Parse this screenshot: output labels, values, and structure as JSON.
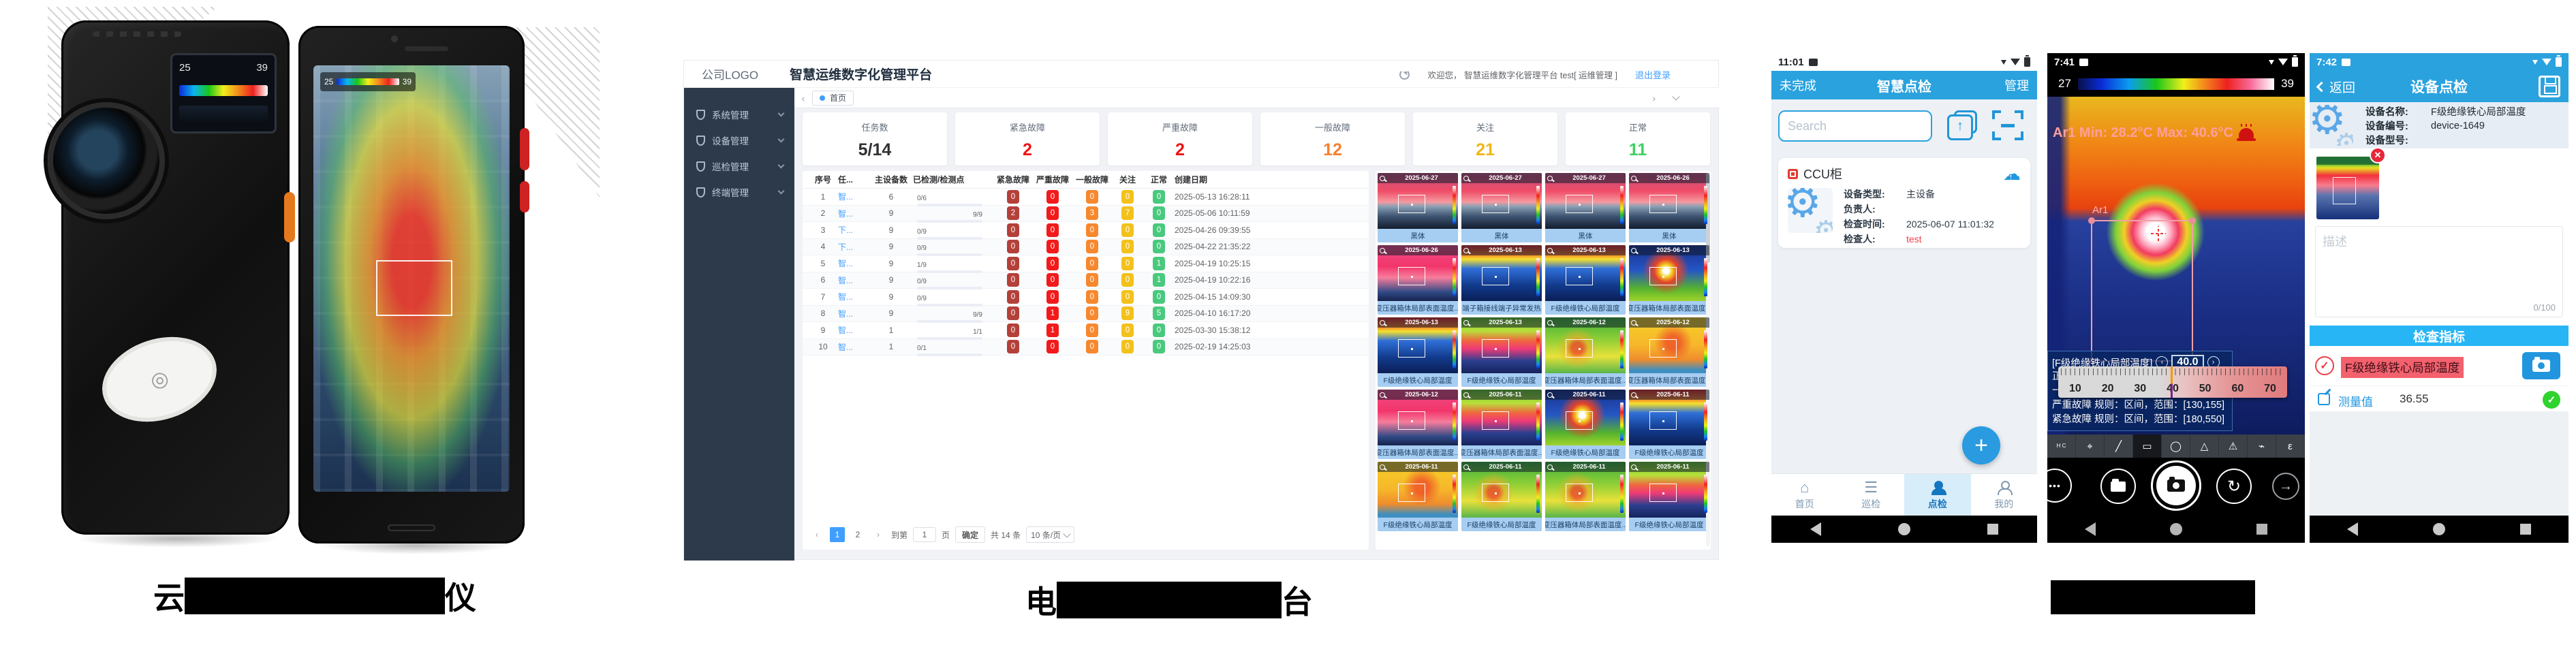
{
  "captions": {
    "left": {
      "prefix": "云",
      "suffix": "仪",
      "redacted": true
    },
    "middle": {
      "prefix": "电",
      "suffix": "台",
      "redacted": true
    },
    "right": {
      "prefix": "",
      "suffix": "",
      "redacted": true
    }
  },
  "devices": {
    "scale_min": "25",
    "scale_max": "39"
  },
  "dashboard": {
    "logo": "公司LOGO",
    "title": "智慧运维数字化管理平台",
    "welcome": "欢迎您， 智慧运维数字化管理平台 test[ 运维管理 ]",
    "logout": "退出登录",
    "sidebar": [
      {
        "label": "系统管理"
      },
      {
        "label": "设备管理"
      },
      {
        "label": "巡检管理"
      },
      {
        "label": "终端管理"
      }
    ],
    "tab": "首页",
    "stats": [
      {
        "label": "任务数",
        "value": "5/14",
        "color": "#303133"
      },
      {
        "label": "紧急故障",
        "value": "2",
        "color": "#f01414"
      },
      {
        "label": "严重故障",
        "value": "2",
        "color": "#f01414"
      },
      {
        "label": "一般故障",
        "value": "12",
        "color": "#f7802e"
      },
      {
        "label": "关注",
        "value": "21",
        "color": "#f2b616"
      },
      {
        "label": "正常",
        "value": "11",
        "color": "#3ecf62"
      }
    ],
    "table": {
      "headers": [
        "序号",
        "任...",
        "主设备数",
        "已检测/检测点",
        "紧急故障",
        "严重故障",
        "一般故障",
        "关注",
        "正常",
        "创建日期"
      ],
      "badge_colors": [
        "#b4403a",
        "#f21a1a",
        "#f7882e",
        "#f3c11b",
        "#49c97d"
      ],
      "rows": [
        {
          "seq": "1",
          "task": "智...",
          "devices": "6",
          "progress_label": "0/6",
          "progress_pct": 0,
          "badges": [
            "0",
            "0",
            "0",
            "0",
            "0"
          ],
          "date": "2025-05-13 16:28:11"
        },
        {
          "seq": "2",
          "task": "智...",
          "devices": "9",
          "progress_label": "9/9",
          "progress_pct": 100,
          "badges": [
            "2",
            "0",
            "3",
            "7",
            "0"
          ],
          "date": "2025-05-06 10:11:59"
        },
        {
          "seq": "3",
          "task": "下...",
          "devices": "9",
          "progress_label": "0/9",
          "progress_pct": 0,
          "badges": [
            "0",
            "0",
            "0",
            "0",
            "0"
          ],
          "date": "2025-04-26 09:39:55"
        },
        {
          "seq": "4",
          "task": "下...",
          "devices": "9",
          "progress_label": "0/9",
          "progress_pct": 0,
          "badges": [
            "0",
            "0",
            "0",
            "0",
            "0"
          ],
          "date": "2025-04-22 21:35:22"
        },
        {
          "seq": "5",
          "task": "智...",
          "devices": "9",
          "progress_label": "1/9",
          "progress_pct": 11,
          "progress_color": "#f56c6c",
          "badges": [
            "0",
            "0",
            "0",
            "0",
            "1"
          ],
          "date": "2025-04-19 10:25:15"
        },
        {
          "seq": "6",
          "task": "智...",
          "devices": "9",
          "progress_label": "0/9",
          "progress_pct": 0,
          "badges": [
            "0",
            "0",
            "0",
            "0",
            "1"
          ],
          "date": "2025-04-19 10:22:16"
        },
        {
          "seq": "7",
          "task": "智...",
          "devices": "9",
          "progress_label": "0/9",
          "progress_pct": 0,
          "badges": [
            "0",
            "0",
            "0",
            "0",
            "0"
          ],
          "date": "2025-04-15 14:09:30"
        },
        {
          "seq": "8",
          "task": "智...",
          "devices": "9",
          "progress_label": "9/9",
          "progress_pct": 100,
          "badges": [
            "0",
            "1",
            "0",
            "9",
            "5"
          ],
          "date": "2025-04-10 16:17:20"
        },
        {
          "seq": "9",
          "task": "智...",
          "devices": "1",
          "progress_label": "1/1",
          "progress_pct": 100,
          "badges": [
            "0",
            "1",
            "0",
            "0",
            "0"
          ],
          "date": "2025-03-30 15:38:12"
        },
        {
          "seq": "10",
          "task": "智...",
          "devices": "1",
          "progress_label": "0/1",
          "progress_pct": 0,
          "badges": [
            "0",
            "0",
            "0",
            "0",
            "0"
          ],
          "date": "2025-02-19 14:25:03"
        }
      ]
    },
    "pagination": {
      "prev": "‹",
      "pages": [
        "1",
        "2"
      ],
      "active_page": "1",
      "next": "›",
      "jump_label": "到第",
      "jump_value": "1",
      "jump_unit": "页",
      "confirm": "确定",
      "total": "共 14 条",
      "page_size": "10 条/页"
    },
    "gallery": [
      {
        "date": "2025-06-27",
        "caption": "黑体",
        "variant": "v1"
      },
      {
        "date": "2025-06-27",
        "caption": "黑体",
        "variant": "v1"
      },
      {
        "date": "2025-06-27",
        "caption": "黑体",
        "variant": "v1"
      },
      {
        "date": "2025-06-26",
        "caption": "黑体",
        "variant": "v1"
      },
      {
        "date": "2025-06-26",
        "caption": "变压器箱体局部表面温度...",
        "variant": "v7"
      },
      {
        "date": "2025-06-13",
        "caption": "端子箱接线端子异常发热",
        "variant": "v2"
      },
      {
        "date": "2025-06-13",
        "caption": "F级绝缘铁心局部温度",
        "variant": "v2"
      },
      {
        "date": "2025-06-13",
        "caption": "变压器箱体局部表面温度...",
        "variant": "v3"
      },
      {
        "date": "2025-06-13",
        "caption": "F级绝缘铁心局部温度",
        "variant": "v2"
      },
      {
        "date": "2025-06-13",
        "caption": "F级绝缘铁心局部温度",
        "variant": "v4"
      },
      {
        "date": "2025-06-12",
        "caption": "变压器箱体局部表面温度...",
        "variant": "v5"
      },
      {
        "date": "2025-06-12",
        "caption": "变压器箱体局部表面温度...",
        "variant": "v6"
      },
      {
        "date": "2025-06-12",
        "caption": "变压器箱体局部表面温度...",
        "variant": "v7"
      },
      {
        "date": "2025-06-11",
        "caption": "变压器箱体局部表面温度...",
        "variant": "v4"
      },
      {
        "date": "2025-06-11",
        "caption": "F级绝缘铁心局部温度",
        "variant": "v3"
      },
      {
        "date": "2025-06-11",
        "caption": "F级绝缘铁心局部温度",
        "variant": "v2"
      },
      {
        "date": "2025-06-11",
        "caption": "F级绝缘铁心局部温度",
        "variant": "v6"
      },
      {
        "date": "2025-06-11",
        "caption": "F级绝缘铁心局部温度",
        "variant": "v5"
      },
      {
        "date": "2025-06-11",
        "caption": "变压器箱体局部表面温度...",
        "variant": "v5"
      },
      {
        "date": "2025-06-11",
        "caption": "F级绝缘铁心局部温度",
        "variant": "v4"
      }
    ]
  },
  "phone1": {
    "time": "11:01",
    "nav_left": "未完成",
    "title": "智慧点检",
    "nav_right": "管理",
    "search_placeholder": "Search",
    "card": {
      "title": "CCU柜",
      "fields": [
        {
          "label": "设备类型:",
          "value": "主设备"
        },
        {
          "label": "负责人:",
          "value": ""
        },
        {
          "label": "检查时间:",
          "value": "2025-06-07 11:01:32"
        },
        {
          "label": "检查人:",
          "value": "test",
          "color": "#f0414d"
        }
      ]
    },
    "fab": "+",
    "tabs": [
      {
        "label": "首页",
        "icon": "home-icon"
      },
      {
        "label": "巡检",
        "icon": "checklist-icon"
      },
      {
        "label": "点检",
        "icon": "inspector-icon",
        "active": true
      },
      {
        "label": "我的",
        "icon": "profile-icon"
      }
    ]
  },
  "phone2": {
    "time": "7:41",
    "scale_min": "27",
    "scale_max": "39",
    "reading": "Ar1 Min: 28.2°C Max: 40.6°C",
    "roi_label": "Ar1",
    "panel": {
      "title": "[F级绝缘铁心局部温度]",
      "value": "40.0",
      "rules": [
        "正常 规则：区间，范围：[0,40]",
        "一般故障 规则：区间，范围：",
        "严重故障 规则：区间，范围：[130,155]",
        "紧急故障 规则：区间，范围：[180,550]"
      ]
    },
    "ruler_ticks": [
      "10",
      "20",
      "30",
      "40",
      "50",
      "60",
      "70"
    ],
    "toolbar_icons": [
      "minmax-marker",
      "spot-meter",
      "line-tool",
      "rectangle-tool",
      "ellipse-tool",
      "triangle-tool",
      "alarm",
      "flashlight",
      "emissivity"
    ],
    "camera_more": "•••"
  },
  "phone3": {
    "time": "7:42",
    "back": "返回",
    "title": "设备点检",
    "fields": [
      {
        "label": "设备名称:",
        "value": "F级绝缘铁心局部温度"
      },
      {
        "label": "设备编号:",
        "value": "device-1649"
      },
      {
        "label": "设备型号:",
        "value": ""
      }
    ],
    "thumb_close": "✕",
    "desc_placeholder": "描述",
    "counter": "0/100",
    "section": "检查指标",
    "item_label": "F级绝缘铁心局部温度",
    "measure_label": "测量值",
    "measure_value": "36.55",
    "check_mark": "✓"
  }
}
